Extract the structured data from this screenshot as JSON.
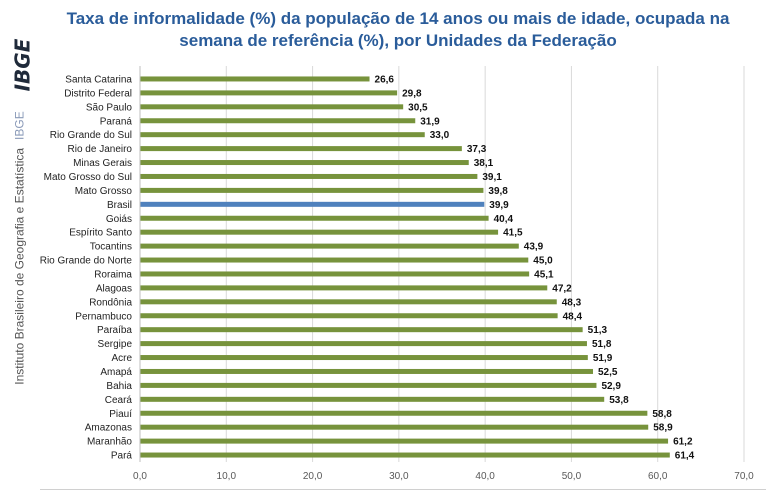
{
  "title_line1": "Taxa de informalidade (%) da população de 14 anos ou mais de idade, ocupada na",
  "title_line2": "semana de referência (%), por Unidades da Federação",
  "logo_text": "IBGE",
  "side_caption": "Instituto Brasileiro de Geografia e Estatística",
  "side_caption_short": "IBGE",
  "colors": {
    "bar": "#77933c",
    "highlight_bar": "#4f81bd",
    "title": "#2a5c9a",
    "grid": "#d9d9d9"
  },
  "chart_data": {
    "type": "bar",
    "orientation": "horizontal",
    "categories": [
      "Santa Catarina",
      "Distrito Federal",
      "São Paulo",
      "Paraná",
      "Rio Grande do Sul",
      "Rio de Janeiro",
      "Minas Gerais",
      "Mato Grosso do Sul",
      "Mato Grosso",
      "Brasil",
      "Goiás",
      "Espírito Santo",
      "Tocantins",
      "Rio Grande do Norte",
      "Roraima",
      "Alagoas",
      "Rondônia",
      "Pernambuco",
      "Paraíba",
      "Sergipe",
      "Acre",
      "Amapá",
      "Bahia",
      "Ceará",
      "Piauí",
      "Amazonas",
      "Maranhão",
      "Pará"
    ],
    "values": [
      26.6,
      29.8,
      30.5,
      31.9,
      33.0,
      37.3,
      38.1,
      39.1,
      39.8,
      39.9,
      40.4,
      41.5,
      43.9,
      45.0,
      45.1,
      47.2,
      48.3,
      48.4,
      51.3,
      51.8,
      51.9,
      52.5,
      52.9,
      53.8,
      58.8,
      58.9,
      61.2,
      61.4
    ],
    "value_labels": [
      "26,6",
      "29,8",
      "30,5",
      "31,9",
      "33,0",
      "37,3",
      "38,1",
      "39,1",
      "39,8",
      "39,9",
      "40,4",
      "41,5",
      "43,9",
      "45,0",
      "45,1",
      "47,2",
      "48,3",
      "48,4",
      "51,3",
      "51,8",
      "51,9",
      "52,5",
      "52,9",
      "53,8",
      "58,8",
      "58,9",
      "61,2",
      "61,4"
    ],
    "highlight": "Brasil",
    "xlim": [
      0,
      70
    ],
    "x_ticks": [
      0,
      10,
      20,
      30,
      40,
      50,
      60,
      70
    ],
    "x_tick_labels": [
      "0,0",
      "10,0",
      "20,0",
      "30,0",
      "40,0",
      "50,0",
      "60,0",
      "70,0"
    ],
    "grid": "vertical",
    "legend": "none"
  }
}
